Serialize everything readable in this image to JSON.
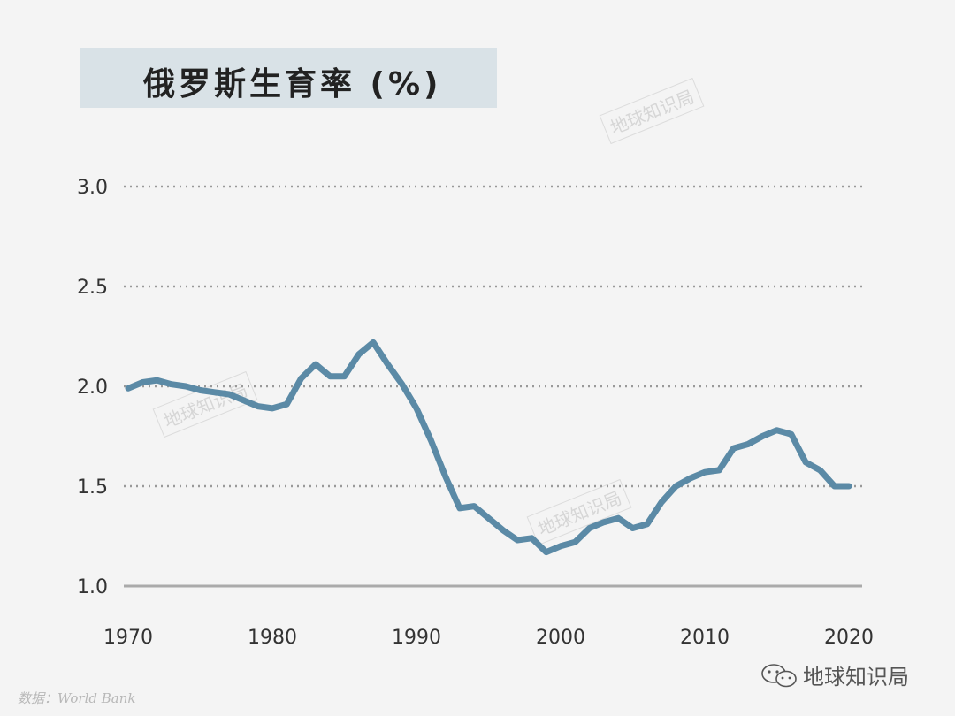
{
  "chart_data": {
    "type": "line",
    "title": "俄罗斯生育率 (%)",
    "x": [
      1970,
      1971,
      1972,
      1973,
      1974,
      1975,
      1976,
      1977,
      1978,
      1979,
      1980,
      1981,
      1982,
      1983,
      1984,
      1985,
      1986,
      1987,
      1988,
      1989,
      1990,
      1991,
      1992,
      1993,
      1994,
      1995,
      1996,
      1997,
      1998,
      1999,
      2000,
      2001,
      2002,
      2003,
      2004,
      2005,
      2006,
      2007,
      2008,
      2009,
      2010,
      2011,
      2012,
      2013,
      2014,
      2015,
      2016,
      2017,
      2018,
      2019,
      2020
    ],
    "series": [
      {
        "values": [
          1.99,
          2.02,
          2.03,
          2.01,
          2.0,
          1.98,
          1.97,
          1.96,
          1.93,
          1.9,
          1.89,
          1.91,
          2.04,
          2.11,
          2.05,
          2.05,
          2.16,
          2.22,
          2.11,
          2.01,
          1.89,
          1.73,
          1.55,
          1.39,
          1.4,
          1.34,
          1.28,
          1.23,
          1.24,
          1.17,
          1.2,
          1.22,
          1.29,
          1.32,
          1.34,
          1.29,
          1.31,
          1.42,
          1.5,
          1.54,
          1.57,
          1.58,
          1.69,
          1.71,
          1.75,
          1.78,
          1.76,
          1.62,
          1.58,
          1.5,
          1.5
        ],
        "color": "#5b8aa6"
      }
    ],
    "xticks": [
      "1970",
      "1980",
      "1990",
      "2000",
      "2010",
      "2020"
    ],
    "yticks": [
      "1.0",
      "1.5",
      "2.0",
      "2.5",
      "3.0"
    ],
    "xlim": [
      1970,
      2020
    ],
    "ylim": [
      1.0,
      3.0
    ],
    "grid": "dotted horizontal"
  },
  "source": "数据：World Bank",
  "brand": {
    "name": "地球知识局",
    "icon": "wechat-icon"
  },
  "watermark": "地球知识局"
}
